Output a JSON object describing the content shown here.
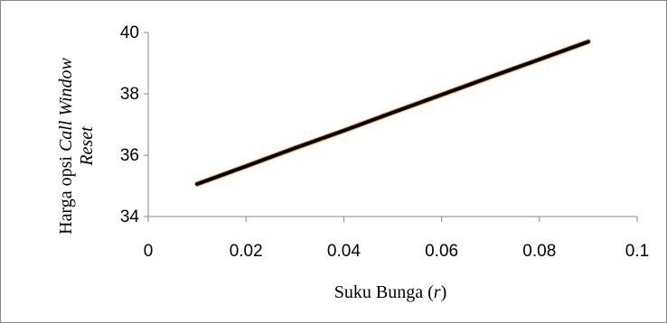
{
  "chart_data": {
    "type": "line",
    "title": "",
    "xlabel_parts": [
      "Suku Bunga (",
      "r",
      ")"
    ],
    "ylabel_line1_parts": [
      "Harga opsi ",
      "Call Window"
    ],
    "ylabel_line2_parts": [
      "R",
      "eset"
    ],
    "xlim": [
      0,
      0.1
    ],
    "ylim": [
      34,
      40
    ],
    "x_ticks": [
      0,
      0.02,
      0.04,
      0.06,
      0.08,
      0.1
    ],
    "x_tick_labels": [
      "0",
      "0.02",
      "0.04",
      "0.06",
      "0.08",
      "0.1"
    ],
    "y_ticks": [
      34,
      36,
      38,
      40
    ],
    "y_tick_labels": [
      "34",
      "36",
      "38",
      "40"
    ],
    "grid": false,
    "legend": "none",
    "series": [
      {
        "x": [
          0.01,
          0.02,
          0.03,
          0.04,
          0.05,
          0.06,
          0.07,
          0.08,
          0.09
        ],
        "y": [
          35.06,
          35.64,
          36.23,
          36.8,
          37.39,
          37.97,
          38.55,
          39.12,
          39.7
        ],
        "color": "#000000",
        "outline_color": "#f4a460"
      }
    ],
    "axis_color": "#888888",
    "frame_color": "#888888"
  }
}
